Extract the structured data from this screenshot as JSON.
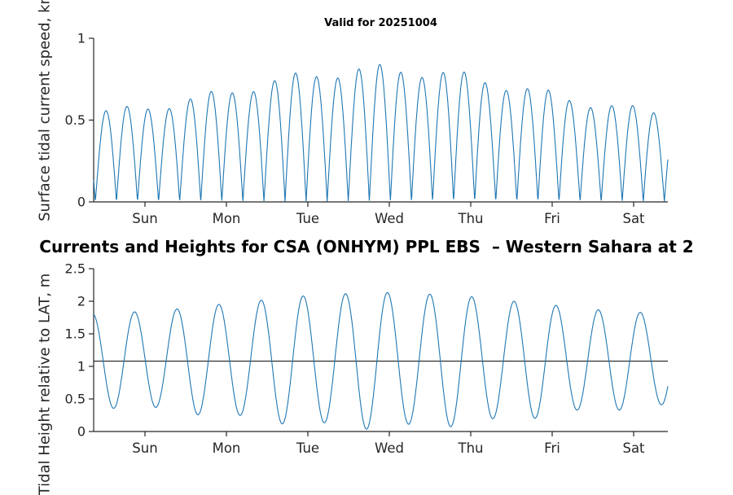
{
  "figure": {
    "main_title": "Currents and Heights for CSA (ONHYM) PPL EBS  – Western Sahara at 2",
    "background": "#ffffff"
  },
  "chart_data": [
    {
      "type": "line",
      "title": "Valid for 20251004",
      "ylabel": "Surface tidal current speed, kn",
      "xlabel": "",
      "xlim": [
        0,
        7.05
      ],
      "ylim": [
        0,
        1
      ],
      "yticks": [
        0,
        0.5,
        1
      ],
      "ytick_labels": [
        "0",
        "0.5",
        "1"
      ],
      "xtick_labels": [
        "Sun",
        "Mon",
        "Tue",
        "Wed",
        "Thu",
        "Fri",
        "Sat"
      ],
      "xtick_start": 0.63,
      "xtick_step": 1,
      "grid": false,
      "legend": false,
      "line_color": "#1f77b4",
      "axis_color": "#262626",
      "model": {
        "kind": "abs_sine",
        "description": "semidiurnal tidal current speed, humps touch zero ~4x/day; neap ~0.55 kn at week start, spring max ~0.81 kn midweek (Wed), easing to ~0.6 kn by Sat",
        "period_days": 0.5175,
        "phase_day": 0.021,
        "mean_amp": 0.675,
        "amp_modulation": 0.13,
        "springneap_period_days": 7.4,
        "spring_center_day": 3.55,
        "diurnal_inequality": 0.045,
        "diurnal_period_days": 1.0353,
        "diurnal_phase_day": 0.1
      }
    },
    {
      "type": "line",
      "title": "",
      "ylabel": "Tidal Height relative to LAT, m",
      "xlabel": "",
      "xlim": [
        0,
        7.05
      ],
      "ylim": [
        0,
        2.5
      ],
      "yticks": [
        0,
        0.5,
        1,
        1.5,
        2,
        2.5
      ],
      "ytick_labels": [
        "0",
        "0.5",
        "1",
        "1.5",
        "2",
        "2.5"
      ],
      "xtick_labels": [
        "Sun",
        "Mon",
        "Tue",
        "Wed",
        "Thu",
        "Fri",
        "Sat"
      ],
      "xtick_start": 0.63,
      "xtick_step": 1,
      "grid": false,
      "legend": false,
      "line_color": "#1f77b4",
      "axis_color": "#262626",
      "ref_line_y": 1.08,
      "ref_line_color": "#000000",
      "model": {
        "kind": "cosine",
        "description": "semidiurnal tidal height about mean ~1.1 m; neap range ~0.35–1.8 m at week start, spring range ~0.07–2.13 m midweek, ~0.33–1.87 m by Sat",
        "period_days": 0.5175,
        "phase_day": -0.014,
        "mean_level": 1.1,
        "mean_amp": 0.87,
        "amp_modulation": 0.16,
        "springneap_period_days": 7.4,
        "spring_center_day": 3.55,
        "diurnal_inequality": 0.035,
        "diurnal_period_days": 1.0353,
        "diurnal_phase_day": 0.0
      }
    }
  ]
}
